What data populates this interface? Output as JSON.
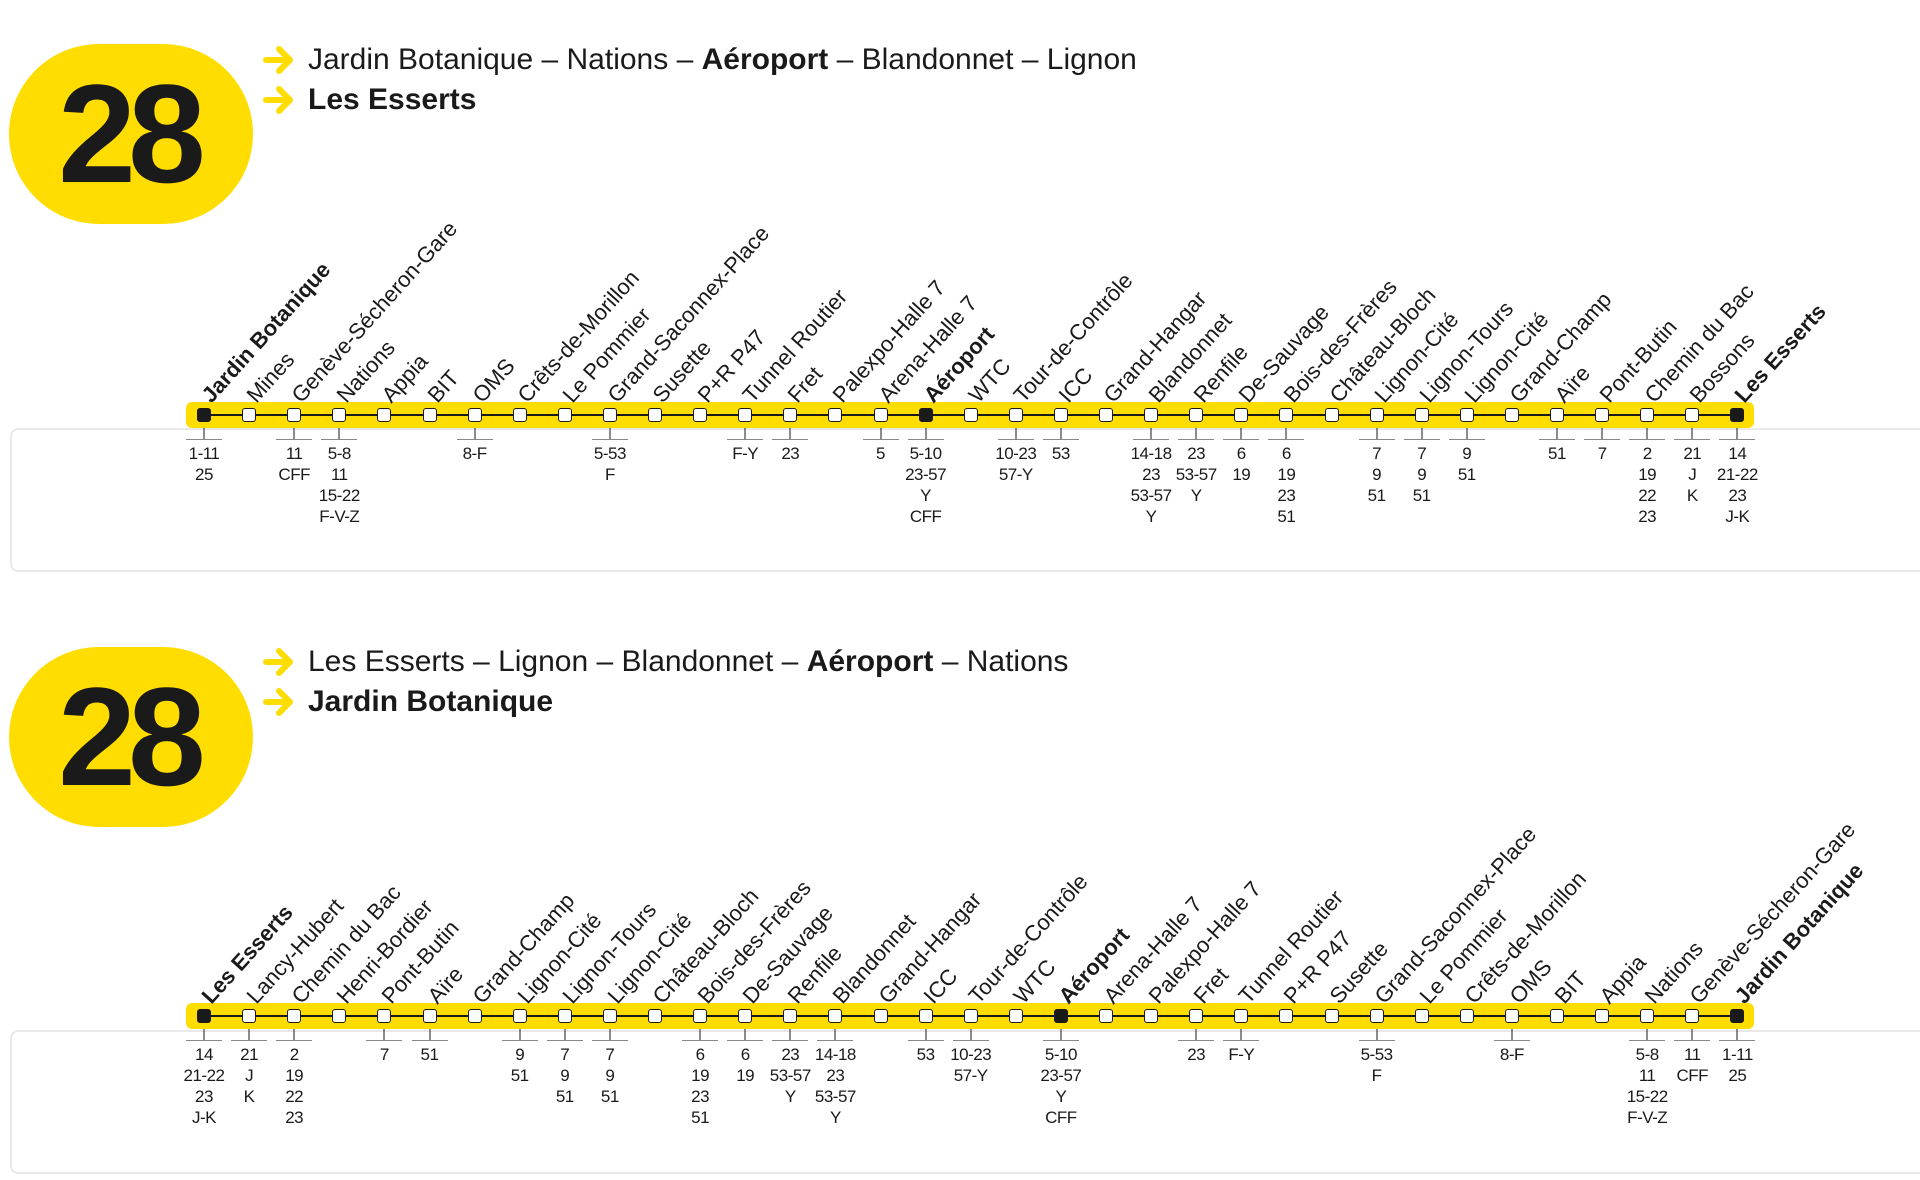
{
  "sections": [
    {
      "number": "28",
      "route_line1_parts": [
        {
          "text": "Jardin Botanique – Nations – ",
          "bold": false
        },
        {
          "text": "Aéroport",
          "bold": true
        },
        {
          "text": " – Blandonnet – Lignon",
          "bold": false
        }
      ],
      "route_line2": "Les Esserts",
      "stops": [
        {
          "name": "Jardin Botanique",
          "bold": true,
          "terminal": true,
          "conn": [
            "1-11",
            "25"
          ]
        },
        {
          "name": "Mines",
          "conn": []
        },
        {
          "name": "Genève-Sécheron-Gare",
          "conn": [
            "11",
            "CFF"
          ]
        },
        {
          "name": "Nations",
          "conn": [
            "5-8",
            "11",
            "15-22",
            "F-V-Z"
          ]
        },
        {
          "name": "Appia",
          "conn": []
        },
        {
          "name": "BIT",
          "conn": []
        },
        {
          "name": "OMS",
          "conn": [
            "8-F"
          ]
        },
        {
          "name": "Crêts-de-Morillon",
          "conn": []
        },
        {
          "name": "Le Pommier",
          "conn": []
        },
        {
          "name": "Grand-Saconnex-Place",
          "conn": [
            "5-53",
            "F"
          ]
        },
        {
          "name": "Susette",
          "conn": []
        },
        {
          "name": "P+R P47",
          "conn": []
        },
        {
          "name": "Tunnel Routier",
          "conn": [
            "F-Y"
          ]
        },
        {
          "name": "Fret",
          "conn": [
            "23"
          ]
        },
        {
          "name": "Palexpo-Halle 7",
          "conn": []
        },
        {
          "name": "Arena-Halle 7",
          "conn": [
            "5"
          ]
        },
        {
          "name": "Aéroport",
          "bold": true,
          "terminal": true,
          "conn": [
            "5-10",
            "23-57",
            "Y",
            "CFF"
          ]
        },
        {
          "name": "WTC",
          "conn": []
        },
        {
          "name": "Tour-de-Contrôle",
          "conn": [
            "10-23",
            "57-Y"
          ]
        },
        {
          "name": "ICC",
          "conn": [
            "53"
          ]
        },
        {
          "name": "Grand-Hangar",
          "conn": []
        },
        {
          "name": "Blandonnet",
          "conn": [
            "14-18",
            "23",
            "53-57",
            "Y"
          ]
        },
        {
          "name": "Renfile",
          "conn": [
            "23",
            "53-57",
            "Y"
          ]
        },
        {
          "name": "De-Sauvage",
          "conn": [
            "6",
            "19"
          ]
        },
        {
          "name": "Bois-des-Frères",
          "conn": [
            "6",
            "19",
            "23",
            "51"
          ]
        },
        {
          "name": "Château-Bloch",
          "conn": []
        },
        {
          "name": "Lignon-Cité",
          "conn": [
            "7",
            "9",
            "51"
          ]
        },
        {
          "name": "Lignon-Tours",
          "conn": [
            "7",
            "9",
            "51"
          ]
        },
        {
          "name": "Lignon-Cité",
          "conn": [
            "9",
            "51"
          ]
        },
        {
          "name": "Grand-Champ",
          "conn": []
        },
        {
          "name": "Aïre",
          "conn": [
            "51"
          ]
        },
        {
          "name": "Pont-Butin",
          "conn": [
            "7"
          ]
        },
        {
          "name": "Chemin du Bac",
          "conn": [
            "2",
            "19",
            "22",
            "23"
          ]
        },
        {
          "name": "Bossons",
          "conn": [
            "21",
            "J",
            "K"
          ]
        },
        {
          "name": "Les Esserts",
          "bold": true,
          "terminal": true,
          "conn": [
            "14",
            "21-22",
            "23",
            "J-K"
          ]
        }
      ]
    },
    {
      "number": "28",
      "route_line1_parts": [
        {
          "text": "Les Esserts – Lignon – Blandonnet – ",
          "bold": false
        },
        {
          "text": "Aéroport",
          "bold": true
        },
        {
          "text": " – Nations",
          "bold": false
        }
      ],
      "route_line2": "Jardin Botanique",
      "stops": [
        {
          "name": "Les Esserts",
          "bold": true,
          "terminal": true,
          "conn": [
            "14",
            "21-22",
            "23",
            "J-K"
          ]
        },
        {
          "name": "Lancy-Hubert",
          "conn": [
            "21",
            "J",
            "K"
          ]
        },
        {
          "name": "Chemin du Bac",
          "conn": [
            "2",
            "19",
            "22",
            "23"
          ]
        },
        {
          "name": "Henri-Bordier",
          "conn": []
        },
        {
          "name": "Pont-Butin",
          "conn": [
            "7"
          ]
        },
        {
          "name": "Aïre",
          "conn": [
            "51"
          ]
        },
        {
          "name": "Grand-Champ",
          "conn": []
        },
        {
          "name": "Lignon-Cité",
          "conn": [
            "9",
            "51"
          ]
        },
        {
          "name": "Lignon-Tours",
          "conn": [
            "7",
            "9",
            "51"
          ]
        },
        {
          "name": "Lignon-Cité",
          "conn": [
            "7",
            "9",
            "51"
          ]
        },
        {
          "name": "Château-Bloch",
          "conn": []
        },
        {
          "name": "Bois-des-Frères",
          "conn": [
            "6",
            "19",
            "23",
            "51"
          ]
        },
        {
          "name": "De-Sauvage",
          "conn": [
            "6",
            "19"
          ]
        },
        {
          "name": "Renfile",
          "conn": [
            "23",
            "53-57",
            "Y"
          ]
        },
        {
          "name": "Blandonnet",
          "conn": [
            "14-18",
            "23",
            "53-57",
            "Y"
          ]
        },
        {
          "name": "Grand-Hangar",
          "conn": []
        },
        {
          "name": "ICC",
          "conn": [
            "53"
          ]
        },
        {
          "name": "Tour-de-Contrôle",
          "conn": [
            "10-23",
            "57-Y"
          ]
        },
        {
          "name": "WTC",
          "conn": []
        },
        {
          "name": "Aéroport",
          "bold": true,
          "terminal": true,
          "conn": [
            "5-10",
            "23-57",
            "Y",
            "CFF"
          ]
        },
        {
          "name": "Arena-Halle 7",
          "conn": []
        },
        {
          "name": "Palexpo-Halle 7",
          "conn": []
        },
        {
          "name": "Fret",
          "conn": [
            "23"
          ]
        },
        {
          "name": "Tunnel Routier",
          "conn": [
            "F-Y"
          ]
        },
        {
          "name": "P+R P47",
          "conn": []
        },
        {
          "name": "Susette",
          "conn": []
        },
        {
          "name": "Grand-Saconnex-Place",
          "conn": [
            "5-53",
            "F"
          ]
        },
        {
          "name": "Le Pommier",
          "conn": []
        },
        {
          "name": "Crêts-de-Morillon",
          "conn": []
        },
        {
          "name": "OMS",
          "conn": [
            "8-F"
          ]
        },
        {
          "name": "BIT",
          "conn": []
        },
        {
          "name": "Appia",
          "conn": []
        },
        {
          "name": "Nations",
          "conn": [
            "5-8",
            "11",
            "15-22",
            "F-V-Z"
          ]
        },
        {
          "name": "Genève-Sécheron-Gare",
          "conn": [
            "11",
            "CFF"
          ]
        },
        {
          "name": "Jardin Botanique",
          "bold": true,
          "terminal": true,
          "conn": [
            "1-11",
            "25"
          ]
        }
      ]
    }
  ],
  "colors": {
    "accent": "#ffdd00",
    "text": "#1a1a1a",
    "panel_border": "#e9e9e9"
  }
}
